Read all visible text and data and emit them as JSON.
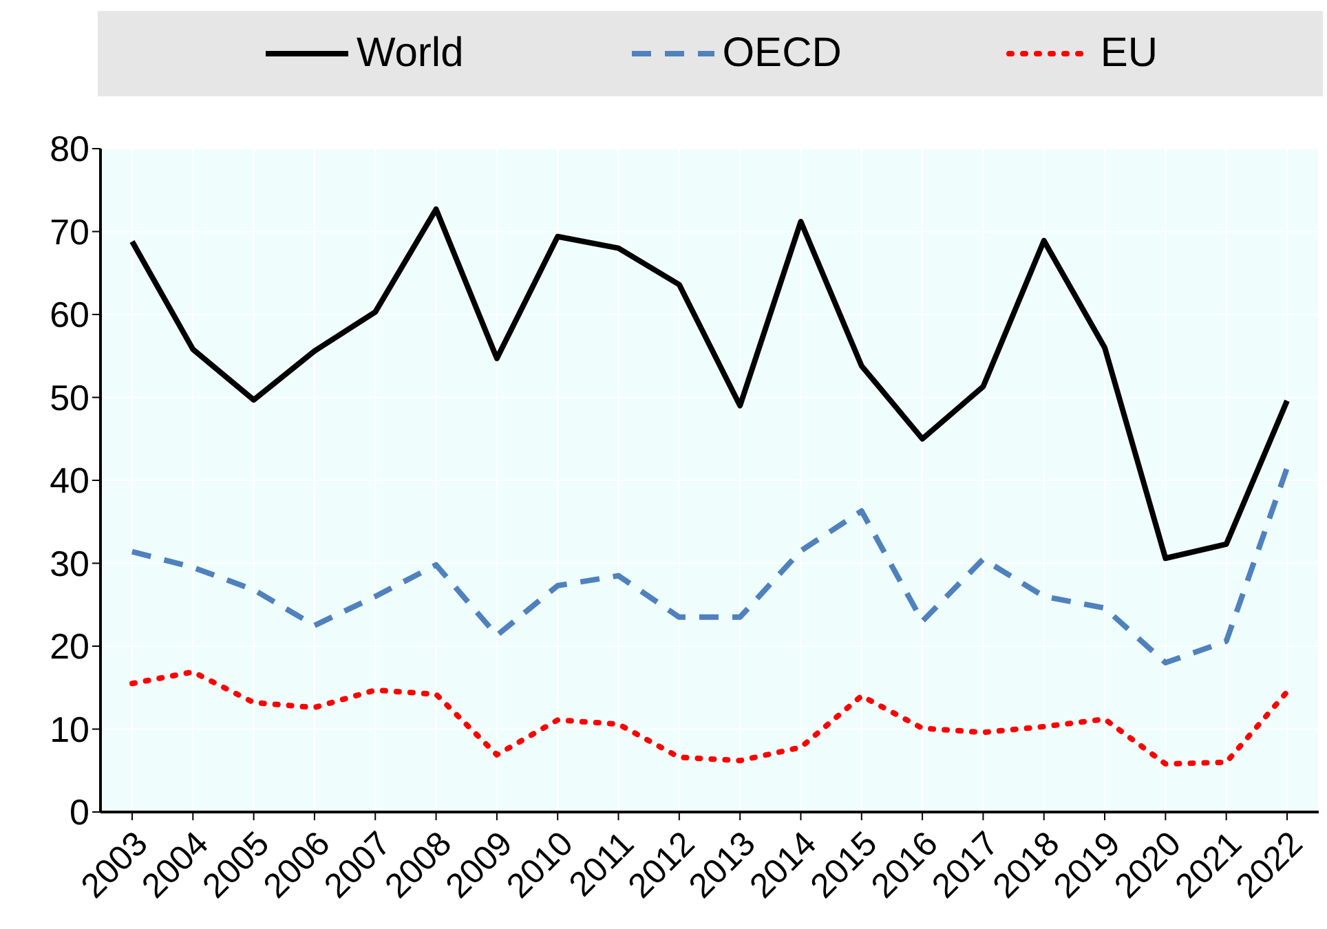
{
  "chart_data": {
    "type": "line",
    "categories": [
      "2003",
      "2004",
      "2005",
      "2006",
      "2007",
      "2008",
      "2009",
      "2010",
      "2011",
      "2012",
      "2013",
      "2014",
      "2015",
      "2016",
      "2017",
      "2018",
      "2019",
      "2020",
      "2021",
      "2022"
    ],
    "series": [
      {
        "name": "World",
        "color": "#000000",
        "line_style": "solid",
        "values": [
          68.8,
          55.8,
          49.7,
          55.6,
          60.3,
          72.7,
          54.7,
          69.4,
          68.0,
          63.6,
          49.0,
          71.2,
          53.8,
          45.0,
          51.3,
          68.9,
          56.0,
          30.6,
          32.3,
          49.6
        ]
      },
      {
        "name": "OECD",
        "color": "#4f81bd",
        "line_style": "dashed",
        "values": [
          31.4,
          29.5,
          26.8,
          22.5,
          26.0,
          29.8,
          21.3,
          27.3,
          28.5,
          23.5,
          23.5,
          31.5,
          36.3,
          23.0,
          30.5,
          26.0,
          24.6,
          18.0,
          20.6,
          41.5
        ]
      },
      {
        "name": "EU",
        "color": "#ff0000",
        "line_style": "dotted",
        "values": [
          15.5,
          16.9,
          13.2,
          12.6,
          14.7,
          14.2,
          6.9,
          11.1,
          10.6,
          6.6,
          6.2,
          7.8,
          14.0,
          10.1,
          9.6,
          10.3,
          11.2,
          5.8,
          6.0,
          14.5
        ]
      }
    ],
    "ylim": [
      0,
      80
    ],
    "yticks": [
      0,
      10,
      20,
      30,
      40,
      50,
      60,
      70,
      80
    ],
    "grid": true,
    "legend": "top",
    "marker": "none"
  }
}
